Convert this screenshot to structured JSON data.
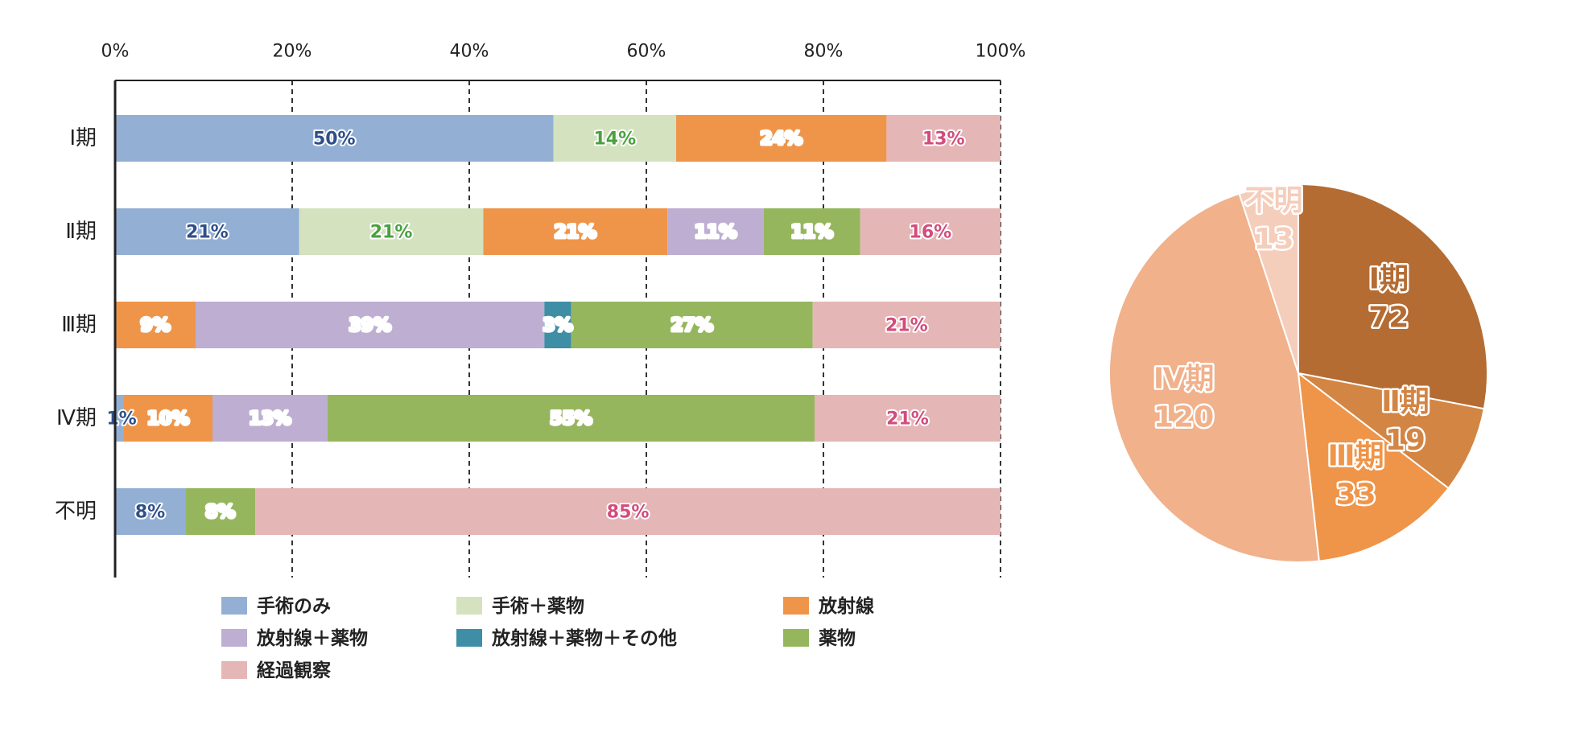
{
  "chart_data": [
    {
      "type": "bar",
      "orientation": "horizontal",
      "stacked": true,
      "percent": true,
      "x_ticks": [
        "0%",
        "20%",
        "40%",
        "60%",
        "80%",
        "100%"
      ],
      "xlim": [
        0,
        100
      ],
      "grid": "vertical dashed",
      "categories": [
        "Ⅰ期",
        "Ⅱ期",
        "Ⅲ期",
        "Ⅳ期",
        "不明"
      ],
      "series": [
        {
          "name": "手術のみ",
          "color": "#93b0d4",
          "label_color": "#2f4f8a",
          "values": [
            50,
            21,
            0,
            1,
            8
          ]
        },
        {
          "name": "手術＋薬物",
          "color": "#d4e2bf",
          "label_color": "#4aa03f",
          "values": [
            14,
            21,
            0,
            0,
            0
          ]
        },
        {
          "name": "放射線",
          "color": "#ef9549",
          "label_color": "#ffffff",
          "values": [
            24,
            21,
            9,
            10,
            0
          ]
        },
        {
          "name": "放射線＋薬物",
          "color": "#bdaed2",
          "label_color": "#ffffff",
          "values": [
            0,
            11,
            39,
            13,
            0
          ]
        },
        {
          "name": "放射線＋薬物＋その他",
          "color": "#3e8ea6",
          "label_color": "#ffffff",
          "values": [
            0,
            0,
            3,
            0,
            0
          ]
        },
        {
          "name": "薬物",
          "color": "#96b65e",
          "label_color": "#ffffff",
          "values": [
            0,
            11,
            27,
            55,
            8
          ]
        },
        {
          "name": "経過観察",
          "color": "#e4b6b6",
          "label_color": "#d24c7c",
          "values": [
            13,
            16,
            21,
            21,
            85
          ]
        }
      ],
      "labels": [
        [
          "50%",
          "14%",
          "24%",
          "",
          "",
          "",
          "13%"
        ],
        [
          "21%",
          "21%",
          "21%",
          "11%",
          "",
          "11%",
          "16%"
        ],
        [
          "",
          "",
          "9%",
          "39%",
          "3%",
          "27%",
          "21%"
        ],
        [
          "1%",
          "",
          "10%",
          "13%",
          "",
          "55%",
          "21%"
        ],
        [
          "8%",
          "",
          "",
          "",
          "",
          "8%",
          "85%"
        ]
      ],
      "legend": {
        "placement": "bottom",
        "columns": 3
      }
    },
    {
      "type": "pie",
      "slices": [
        {
          "label": "Ⅰ期",
          "value": 72,
          "value_text": "72",
          "color": "#b46c33"
        },
        {
          "label": "Ⅱ期",
          "value": 19,
          "value_text": "19",
          "color": "#d38544"
        },
        {
          "label": "Ⅲ期",
          "value": 33,
          "value_text": "33",
          "color": "#ef9549"
        },
        {
          "label": "Ⅳ期",
          "value": 120,
          "value_text": "120",
          "color": "#f0b18b"
        },
        {
          "label": "不明",
          "value": 13,
          "value_text": "13",
          "color": "#f5cdbb"
        }
      ],
      "start": "top",
      "direction": "clockwise"
    }
  ]
}
